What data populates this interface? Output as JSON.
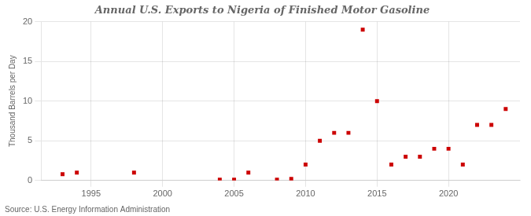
{
  "chart_data": {
    "type": "scatter",
    "title": "Annual U.S. Exports to Nigeria of Finished Motor Gasoline",
    "ylabel": "Thousand Barrels per Day",
    "annotations": [
      "Source: U.S. Energy Information Administration"
    ],
    "x": [
      1993,
      1994,
      1998,
      2004,
      2005,
      2006,
      2008,
      2009,
      2010,
      2011,
      2012,
      2013,
      2014,
      2015,
      2016,
      2017,
      2018,
      2019,
      2020,
      2021,
      2022,
      2023,
      2024
    ],
    "values": [
      0.8,
      1.0,
      1.0,
      0.1,
      0.1,
      1.0,
      0.1,
      0.2,
      2.0,
      5.0,
      6.0,
      6.0,
      19.0,
      10.0,
      2.0,
      3.0,
      3.0,
      4.0,
      4.0,
      2.0,
      7.0,
      7.0,
      9.0
    ],
    "color": "#cc0000",
    "marker": "square",
    "xlim": [
      1991.5,
      2025
    ],
    "xticks": [
      1995,
      2000,
      2005,
      2010,
      2015,
      2020
    ],
    "ylim": [
      0,
      20
    ],
    "yticks": [
      0,
      5,
      10,
      15,
      20
    ],
    "grid": true
  }
}
